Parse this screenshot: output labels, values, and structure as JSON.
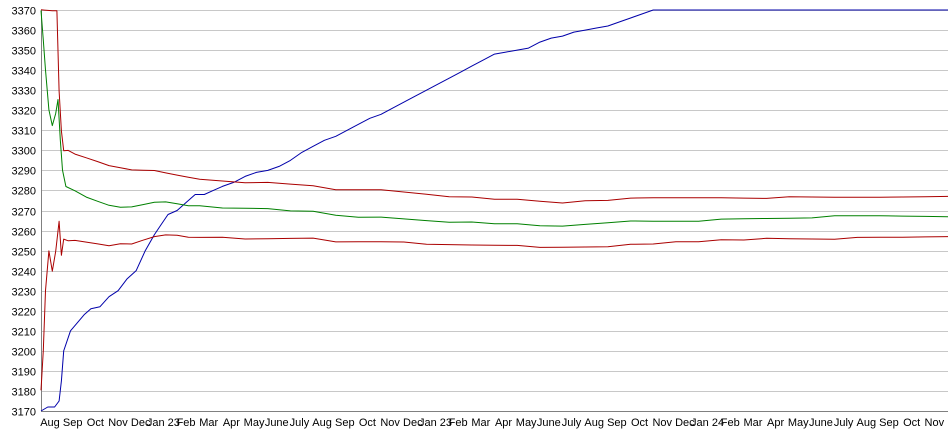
{
  "chart_data": {
    "type": "line",
    "title": "",
    "xlabel": "",
    "ylabel": "",
    "ylim": [
      3170,
      3370
    ],
    "y_ticks": [
      3170,
      3180,
      3190,
      3200,
      3210,
      3220,
      3230,
      3240,
      3250,
      3260,
      3270,
      3280,
      3290,
      3300,
      3310,
      3320,
      3330,
      3340,
      3350,
      3360,
      3370
    ],
    "x_tick_labels": [
      "Aug",
      "Sep",
      "Oct",
      "Nov",
      "Dec",
      "Jan 23",
      "Feb",
      "Mar",
      "Apr",
      "May",
      "June",
      "July",
      "Aug",
      "Sep",
      "Oct",
      "Nov",
      "Dec",
      "Jan 23",
      "Feb",
      "Mar",
      "Apr",
      "May",
      "June",
      "July",
      "Aug",
      "Sep",
      "Oct",
      "Nov",
      "Dec",
      "Jan 24",
      "Feb",
      "Mar",
      "Apr",
      "May",
      "June",
      "July",
      "Aug",
      "Sep",
      "Oct",
      "Nov"
    ],
    "grid": true,
    "legend": "none",
    "series": [
      {
        "color": "#0000aa",
        "x": [
          0,
          0.3,
          0.6,
          0.8,
          0.9,
          1.0,
          1.3,
          1.6,
          1.9,
          2.2,
          2.6,
          3.0,
          3.4,
          3.8,
          4.2,
          4.6,
          5.0,
          5.3,
          5.6,
          6.0,
          6.4,
          6.8,
          7.2,
          7.6,
          8.0,
          8.5,
          9.0,
          9.5,
          10.0,
          10.5,
          11.0,
          11.5,
          12.0,
          12.5,
          13.0,
          13.5,
          14.0,
          14.5,
          15.0,
          15.5,
          16.0,
          16.5,
          17.0,
          17.5,
          18.0,
          18.5,
          19.0,
          19.5,
          20.0,
          20.5,
          21.0,
          21.5,
          22.0,
          22.5,
          23.0,
          23.5,
          24.0,
          24.5,
          25.0,
          25.5,
          26.0,
          26.5,
          27.0,
          27.5,
          28.0,
          28.5,
          29.0,
          29.5,
          30.0,
          30.5,
          31.0,
          32.0,
          33.0,
          34.0,
          35.0,
          36.0,
          37.0,
          38.0,
          39.0,
          40.0
        ],
        "values": [
          3170,
          3172,
          3172,
          3175,
          3185,
          3200,
          3210,
          3214,
          3218,
          3221,
          3222,
          3227,
          3230,
          3236,
          3240,
          3250,
          3258,
          3263,
          3268,
          3270,
          3274,
          3278,
          3278,
          3280,
          3282,
          3284,
          3287,
          3289,
          3290,
          3292,
          3295,
          3299,
          3302,
          3305,
          3307,
          3310,
          3313,
          3316,
          3318,
          3321,
          3324,
          3327,
          3330,
          3333,
          3336,
          3339,
          3342,
          3345,
          3348,
          3349,
          3350,
          3351,
          3354,
          3356,
          3357,
          3359,
          3360,
          3361,
          3362,
          3364,
          3366,
          3368,
          3370,
          3370,
          3370,
          3370,
          3370,
          3370,
          3370,
          3370,
          3370,
          3370,
          3370,
          3370,
          3370,
          3370,
          3370,
          3370,
          3370,
          3370
        ]
      },
      {
        "color": "#aa0000",
        "x": [
          0,
          0.15,
          0.3,
          0.5,
          0.7,
          0.8,
          0.9,
          1.0,
          1.2,
          1.5,
          2.0,
          2.5,
          3.0,
          3.5,
          4.0,
          4.5,
          5.0,
          5.5,
          6.0,
          6.5,
          7.0,
          8.0,
          9.0,
          10.0,
          11.0,
          12.0,
          13.0,
          14.0,
          15.0,
          16.0,
          17.0,
          18.0,
          19.0,
          20.0,
          21.0,
          22.0,
          23.0,
          24.0,
          25.0,
          26.0,
          27.0,
          28.0,
          29.0,
          30.0,
          31.0,
          32.0,
          33.0,
          34.0,
          35.0,
          36.0,
          37.0,
          38.0,
          39.0,
          40.0
        ],
        "values": [
          3370,
          3370,
          3370,
          3370,
          3370,
          3330,
          3310,
          3300,
          3300,
          3298,
          3296,
          3294,
          3292,
          3291,
          3290,
          3290,
          3290,
          3289,
          3288,
          3287,
          3286,
          3285,
          3284,
          3284,
          3283,
          3282,
          3280,
          3280,
          3280,
          3279,
          3278,
          3277,
          3277,
          3276,
          3276,
          3275,
          3274,
          3275,
          3275,
          3276,
          3276,
          3276,
          3276,
          3276,
          3276,
          3276,
          3277,
          3277,
          3277,
          3277,
          3277,
          3277,
          3277,
          3277
        ]
      },
      {
        "color": "#008000",
        "x": [
          0,
          0.1,
          0.2,
          0.35,
          0.5,
          0.65,
          0.75,
          0.85,
          0.95,
          1.1,
          1.5,
          2.0,
          2.5,
          3.0,
          3.5,
          4.0,
          4.5,
          5.0,
          5.5,
          6.0,
          6.5,
          7.0,
          8.0,
          9.0,
          10.0,
          11.0,
          12.0,
          13.0,
          14.0,
          15.0,
          16.0,
          17.0,
          18.0,
          19.0,
          20.0,
          21.0,
          22.0,
          23.0,
          24.0,
          25.0,
          26.0,
          27.0,
          28.0,
          29.0,
          30.0,
          31.0,
          32.0,
          33.0,
          34.0,
          35.0,
          36.0,
          37.0,
          38.0,
          39.0,
          40.0
        ],
        "values": [
          3370,
          3355,
          3340,
          3320,
          3312,
          3318,
          3325,
          3305,
          3290,
          3282,
          3280,
          3277,
          3275,
          3273,
          3272,
          3272,
          3273,
          3274,
          3274,
          3273,
          3272,
          3272,
          3271,
          3271,
          3271,
          3270,
          3270,
          3268,
          3267,
          3267,
          3266,
          3265,
          3264,
          3264,
          3263,
          3263,
          3262,
          3262,
          3263,
          3264,
          3265,
          3265,
          3265,
          3265,
          3266,
          3266,
          3266,
          3266,
          3266,
          3267,
          3267,
          3267,
          3267,
          3267,
          3267
        ]
      },
      {
        "color": "#aa0000",
        "x": [
          0,
          0.1,
          0.2,
          0.35,
          0.5,
          0.65,
          0.8,
          0.9,
          1.0,
          1.2,
          1.5,
          2.0,
          2.5,
          3.0,
          3.5,
          4.0,
          4.5,
          5.0,
          5.5,
          6.0,
          6.5,
          7.0,
          8.0,
          9.0,
          10.0,
          11.0,
          12.0,
          13.0,
          14.0,
          15.0,
          16.0,
          17.0,
          18.0,
          19.0,
          20.0,
          21.0,
          22.0,
          23.0,
          24.0,
          25.0,
          26.0,
          27.0,
          28.0,
          29.0,
          30.0,
          31.0,
          32.0,
          33.0,
          34.0,
          35.0,
          36.0,
          37.0,
          38.0,
          39.0,
          40.0
        ],
        "values": [
          3180,
          3200,
          3230,
          3250,
          3240,
          3250,
          3265,
          3248,
          3256,
          3255,
          3255,
          3254,
          3253,
          3252,
          3253,
          3253,
          3255,
          3257,
          3258,
          3258,
          3257,
          3257,
          3257,
          3256,
          3256,
          3256,
          3256,
          3254,
          3254,
          3254,
          3254,
          3253,
          3253,
          3253,
          3253,
          3253,
          3252,
          3252,
          3252,
          3252,
          3253,
          3253,
          3254,
          3254,
          3255,
          3255,
          3256,
          3256,
          3256,
          3256,
          3257,
          3257,
          3257,
          3257,
          3257
        ]
      }
    ]
  }
}
